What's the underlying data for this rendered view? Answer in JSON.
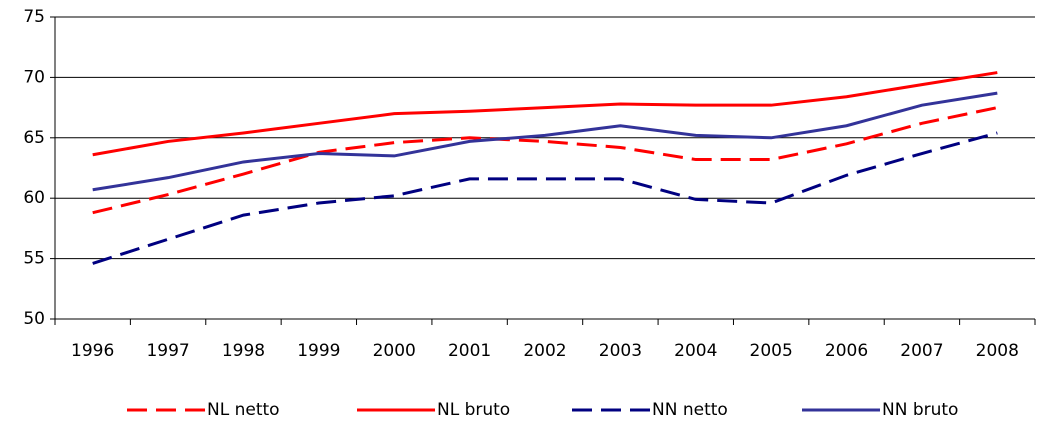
{
  "chart_data": {
    "type": "line",
    "categories": [
      "1996",
      "1997",
      "1998",
      "1999",
      "2000",
      "2001",
      "2002",
      "2003",
      "2004",
      "2005",
      "2006",
      "2007",
      "2008"
    ],
    "series": [
      {
        "name": "NL netto",
        "color": "#ff0000",
        "dash": true,
        "values": [
          58.8,
          60.3,
          62.0,
          63.8,
          64.6,
          65.0,
          64.7,
          64.2,
          63.2,
          63.2,
          64.5,
          66.2,
          67.5
        ]
      },
      {
        "name": "NL bruto",
        "color": "#ff0000",
        "dash": false,
        "values": [
          63.6,
          64.7,
          65.4,
          66.2,
          67.0,
          67.2,
          67.5,
          67.8,
          67.7,
          67.7,
          68.4,
          69.4,
          70.4
        ]
      },
      {
        "name": "NN netto",
        "color": "#000080",
        "dash": true,
        "values": [
          54.6,
          56.6,
          58.6,
          59.6,
          60.2,
          61.6,
          61.6,
          61.6,
          59.9,
          59.6,
          61.9,
          63.7,
          65.4
        ]
      },
      {
        "name": "NN bruto",
        "color": "#333399",
        "dash": false,
        "values": [
          60.7,
          61.7,
          63.0,
          63.7,
          63.5,
          64.7,
          65.2,
          66.0,
          65.2,
          65.0,
          66.0,
          67.7,
          68.7
        ]
      }
    ],
    "ylim": [
      50,
      75
    ],
    "yticks": [
      50,
      55,
      60,
      65,
      70,
      75
    ],
    "grid": true,
    "legend": "bottom"
  }
}
